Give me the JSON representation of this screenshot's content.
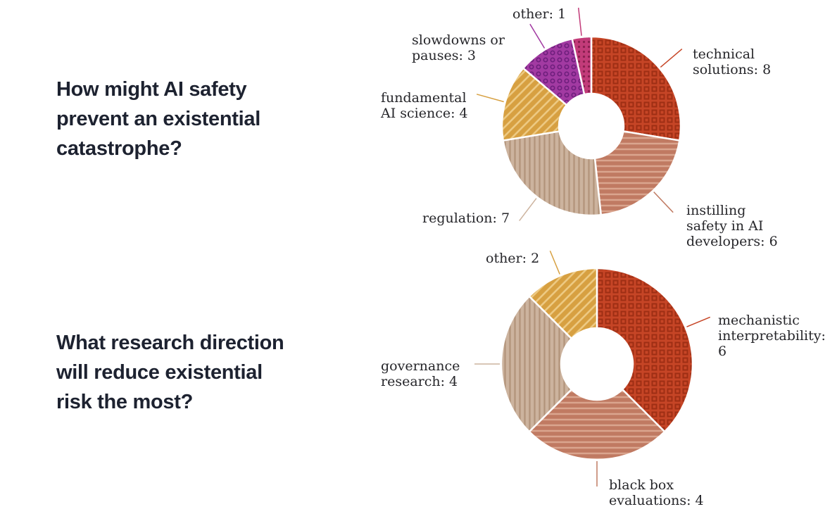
{
  "page": {
    "questions": [
      {
        "lines": [
          "How might AI safety",
          "prevent an existential",
          "catastrophe?"
        ]
      },
      {
        "lines": [
          "What research direction",
          "will reduce existential",
          "risk the most?"
        ]
      }
    ]
  },
  "chart_data": [
    {
      "type": "pie",
      "style": "donut",
      "title": "How might AI safety prevent an existential catastrophe?",
      "total": 29,
      "start_angle_deg": 0,
      "direction": "clockwise",
      "segments": [
        {
          "name": "technical solutions",
          "value": 8,
          "color": "#c64526",
          "accent": "#9e2e14",
          "pattern": "squares",
          "label_lines": [
            "technical",
            "solutions: 8"
          ]
        },
        {
          "name": "instilling safety in AI developers",
          "value": 6,
          "color": "#c07a62",
          "accent": "#daa58e",
          "pattern": "hlines",
          "label_lines": [
            "instilling",
            "safety in AI",
            "developers: 6"
          ]
        },
        {
          "name": "regulation",
          "value": 7,
          "color": "#ccb39e",
          "accent": "#b2937a",
          "pattern": "vlines",
          "label_lines": [
            "regulation: 7"
          ]
        },
        {
          "name": "fundamental AI science",
          "value": 4,
          "color": "#d7a041",
          "accent": "#eecb85",
          "pattern": "diag",
          "label_lines": [
            "fundamental",
            "AI science: 4"
          ]
        },
        {
          "name": "slowdowns or pauses",
          "value": 3,
          "color": "#a23aa2",
          "accent": "#6f1f7d",
          "pattern": "rings",
          "label_lines": [
            "slowdowns or",
            "pauses: 3"
          ]
        },
        {
          "name": "other",
          "value": 1,
          "color": "#c23b79",
          "accent": "#88204f",
          "pattern": "dots",
          "label_lines": [
            "other: 1"
          ]
        }
      ]
    },
    {
      "type": "pie",
      "style": "donut",
      "title": "What research direction will reduce existential risk the most?",
      "total": 16,
      "start_angle_deg": 0,
      "direction": "clockwise",
      "segments": [
        {
          "name": "mechanistic interpretability",
          "value": 6,
          "color": "#c64526",
          "accent": "#9e2e14",
          "pattern": "squares",
          "label_lines": [
            "mechanistic",
            "interpretability:",
            "6"
          ]
        },
        {
          "name": "black box evaluations",
          "value": 4,
          "color": "#c07a62",
          "accent": "#daa58e",
          "pattern": "hlines",
          "label_lines": [
            "black box",
            "evaluations: 4"
          ]
        },
        {
          "name": "governance research",
          "value": 4,
          "color": "#ccb39e",
          "accent": "#b2937a",
          "pattern": "vlines",
          "label_lines": [
            "governance",
            "research: 4"
          ]
        },
        {
          "name": "other",
          "value": 2,
          "color": "#d7a041",
          "accent": "#eecb85",
          "pattern": "diag",
          "label_lines": [
            "other: 2"
          ]
        }
      ]
    }
  ]
}
